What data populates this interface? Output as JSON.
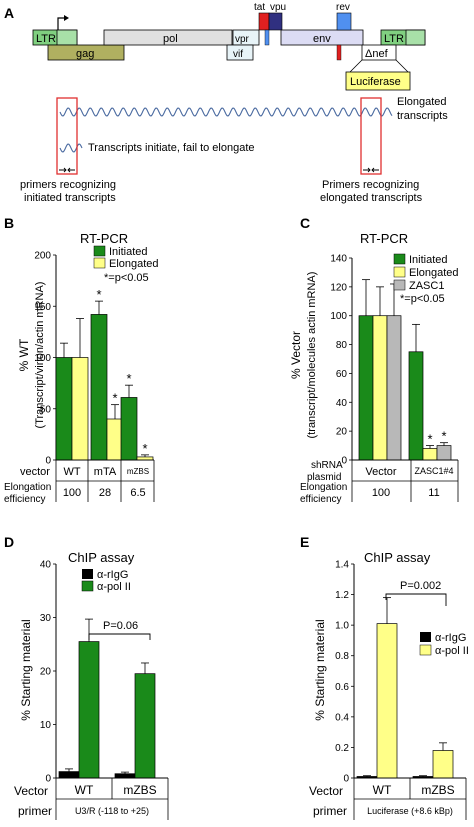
{
  "colors": {
    "initiated": "#1a8a1a",
    "elongated": "#ffff88",
    "zasc1": "#b8b8b8",
    "rigg": "#000000",
    "poll2_D": "#1a8a1a",
    "poll2_E": "#ffff88",
    "ltr": "#80d080",
    "gag": "#b0b060",
    "pol": "#e0e0e0",
    "env": "#dcdcf4",
    "tat": "#e02020",
    "vpu": "#303080",
    "rev": "#5090f0",
    "luciferase": "#ffff88",
    "primer_box": "#e03030",
    "wave": "#4a6aa0"
  },
  "panel_a": {
    "label": "A",
    "genes": {
      "ltr_left": "LTR",
      "gag": "gag",
      "pol": "pol",
      "vpr": "vpr",
      "vif": "vif",
      "tat": "tat",
      "vpu": "vpu",
      "env": "env",
      "rev": "rev",
      "ltr_right": "LTR",
      "nef": "Δnef",
      "luciferase": "Luciferase"
    },
    "elongated_label": "Elongated\ntranscripts",
    "elongated_line1": "Elongated",
    "elongated_line2": "transcripts",
    "fail_label": "Transcripts initiate, fail to elongate",
    "primer_left_1": "primers recognizing",
    "primer_left_2": "initiated transcripts",
    "primer_right_1": "Primers recognizing",
    "primer_right_2": "elongated transcripts"
  },
  "panel_b": {
    "label": "B",
    "title": "RT-PCR",
    "ylabel_line1": "% WT",
    "ylabel_line2": "(Transcript/virion/actin mRNA)",
    "legend": [
      "Initiated",
      "Elongated"
    ],
    "sig_note": "*=p<0.05",
    "row1_head": "vector",
    "row2_head_1": "Elongation",
    "row2_head_2": "efficiency",
    "categories": [
      "WT",
      "mTA",
      "mZBS"
    ],
    "efficiency": [
      "100",
      "28",
      "6.5"
    ]
  },
  "panel_c": {
    "label": "C",
    "title": "RT-PCR",
    "ylabel_line1": "% Vector",
    "ylabel_line2": "(transcript/molecules actin mRNA)",
    "legend": [
      "Initiated",
      "Elongated",
      "ZASC1"
    ],
    "sig_note": "*=p<0.05",
    "row1_head_1": "shRNA",
    "row1_head_2": "plasmid",
    "row2_head_1": "Elongation",
    "row2_head_2": "efficiency",
    "categories": [
      "Vector",
      "ZASC1#4"
    ],
    "efficiency": [
      "100",
      "11"
    ]
  },
  "panel_d": {
    "label": "D",
    "title": "ChIP assay",
    "ylabel": "% Starting material",
    "legend": [
      "α-rIgG",
      "α-pol II"
    ],
    "pvalue": "P=0.06",
    "row1_head": "Vector",
    "row2_head": "primer",
    "categories": [
      "WT",
      "mZBS"
    ],
    "primer_text": "U3/R (-118 to +25)"
  },
  "panel_e": {
    "label": "E",
    "title": "ChIP assay",
    "ylabel": "% Starting material",
    "legend": [
      "α-rIgG",
      "α-pol II"
    ],
    "pvalue": "P=0.002",
    "row1_head": "Vector",
    "row2_head": "primer",
    "categories": [
      "WT",
      "mZBS"
    ],
    "primer_text": "Luciferase (+8.6 kBp)"
  },
  "chart_data": [
    {
      "type": "bar",
      "title": "RT-PCR",
      "ylabel": "% WT (Transcript/virion/actin mRNA)",
      "ylim": [
        0,
        200
      ],
      "yticks": [
        "0",
        "50",
        "100",
        "150",
        "200"
      ],
      "categories": [
        "WT",
        "mTA",
        "mZBS"
      ],
      "series": [
        {
          "name": "Initiated",
          "values": [
            100,
            142,
            61
          ],
          "errors": [
            14,
            13,
            12
          ],
          "sig": [
            false,
            true,
            true
          ]
        },
        {
          "name": "Elongated",
          "values": [
            100,
            40,
            3
          ],
          "errors": [
            38,
            14,
            2
          ],
          "sig": [
            false,
            true,
            true
          ]
        }
      ]
    },
    {
      "type": "bar",
      "title": "RT-PCR",
      "ylabel": "% Vector (transcript/molecules actin mRNA)",
      "ylim": [
        0,
        140
      ],
      "yticks": [
        "0",
        "20",
        "40",
        "60",
        "80",
        "100",
        "120",
        "140"
      ],
      "categories": [
        "Vector",
        "ZASC1#4"
      ],
      "series": [
        {
          "name": "Initiated",
          "values": [
            100,
            75
          ],
          "errors": [
            25,
            19
          ],
          "sig": [
            false,
            false
          ]
        },
        {
          "name": "Elongated",
          "values": [
            100,
            8
          ],
          "errors": [
            20,
            2
          ],
          "sig": [
            false,
            true
          ]
        },
        {
          "name": "ZASC1",
          "values": [
            100,
            10
          ],
          "errors": [
            22,
            2
          ],
          "sig": [
            false,
            true
          ]
        }
      ]
    },
    {
      "type": "bar",
      "title": "ChIP assay",
      "ylabel": "% Starting material",
      "ylim": [
        0,
        40
      ],
      "yticks": [
        "0",
        "10",
        "20",
        "30",
        "40"
      ],
      "categories": [
        "WT",
        "mZBS"
      ],
      "series": [
        {
          "name": "α-rIgG",
          "values": [
            1.2,
            0.8
          ],
          "errors": [
            0.5,
            0.3
          ]
        },
        {
          "name": "α-pol II",
          "values": [
            25.5,
            19.5
          ],
          "errors": [
            4.2,
            2.0
          ]
        }
      ]
    },
    {
      "type": "bar",
      "title": "ChIP assay",
      "ylabel": "% Starting material",
      "ylim": [
        0,
        1.4
      ],
      "yticks": [
        "0",
        "0.2",
        "0.4",
        "0.6",
        "0.8",
        "1.0",
        "1.2",
        "1.4"
      ],
      "categories": [
        "WT",
        "mZBS"
      ],
      "series": [
        {
          "name": "α-rIgG",
          "values": [
            0.01,
            0.01
          ],
          "errors": [
            0.005,
            0.005
          ]
        },
        {
          "name": "α-pol II",
          "values": [
            1.01,
            0.18
          ],
          "errors": [
            0.17,
            0.05
          ]
        }
      ]
    }
  ]
}
